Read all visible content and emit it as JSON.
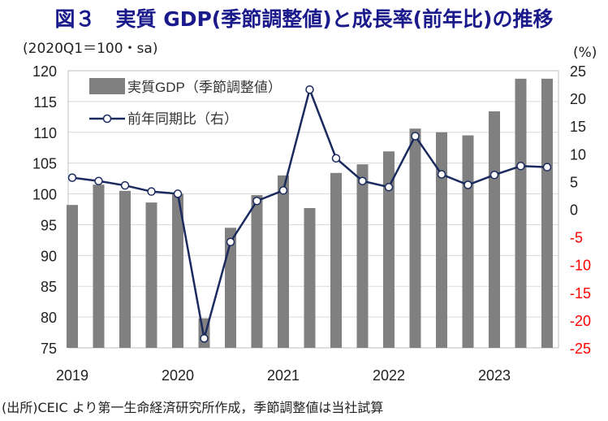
{
  "title": "図３　実質 GDP(季節調整値)と成長率(前年比)の推移",
  "source": "(出所)CEIC より第一生命経済研究所作成，季節調整値は当社試算",
  "chart_data": {
    "type": "bar+line",
    "left_unit": "(2020Q1＝100・sa)",
    "right_unit": "(%)",
    "left_ylim": [
      75,
      120
    ],
    "left_ticks": [
      75,
      80,
      85,
      90,
      95,
      100,
      105,
      110,
      115,
      120
    ],
    "right_ylim": [
      -25,
      25
    ],
    "right_ticks": [
      -25,
      -20,
      -15,
      -10,
      -5,
      0,
      5,
      10,
      15,
      20,
      25
    ],
    "x_labels": [
      "2019",
      "2020",
      "2021",
      "2022",
      "2023"
    ],
    "categories": [
      "2019Q1",
      "2019Q2",
      "2019Q3",
      "2019Q4",
      "2020Q1",
      "2020Q2",
      "2020Q3",
      "2020Q4",
      "2021Q1",
      "2021Q2",
      "2021Q3",
      "2021Q4",
      "2022Q1",
      "2022Q2",
      "2022Q3",
      "2022Q4",
      "2023Q1",
      "2023Q2",
      "2023Q3"
    ],
    "series": [
      {
        "name": "実質GDP（季節調整値）",
        "type": "bar",
        "axis": "left",
        "color": "#808080",
        "values": [
          98.2,
          101.5,
          100.5,
          98.6,
          100.0,
          79.8,
          94.5,
          99.8,
          103.0,
          97.7,
          103.4,
          104.8,
          106.9,
          110.6,
          110.0,
          109.5,
          113.4,
          118.7,
          118.7
        ]
      },
      {
        "name": "前年同期比（右）",
        "type": "line",
        "axis": "right",
        "color": "#1a2a5e",
        "values": [
          5.7,
          5.1,
          4.3,
          3.2,
          2.8,
          -23.3,
          -5.9,
          1.5,
          3.4,
          21.6,
          9.2,
          5.1,
          4.0,
          13.2,
          6.3,
          4.4,
          6.2,
          7.8,
          7.6
        ]
      }
    ]
  }
}
